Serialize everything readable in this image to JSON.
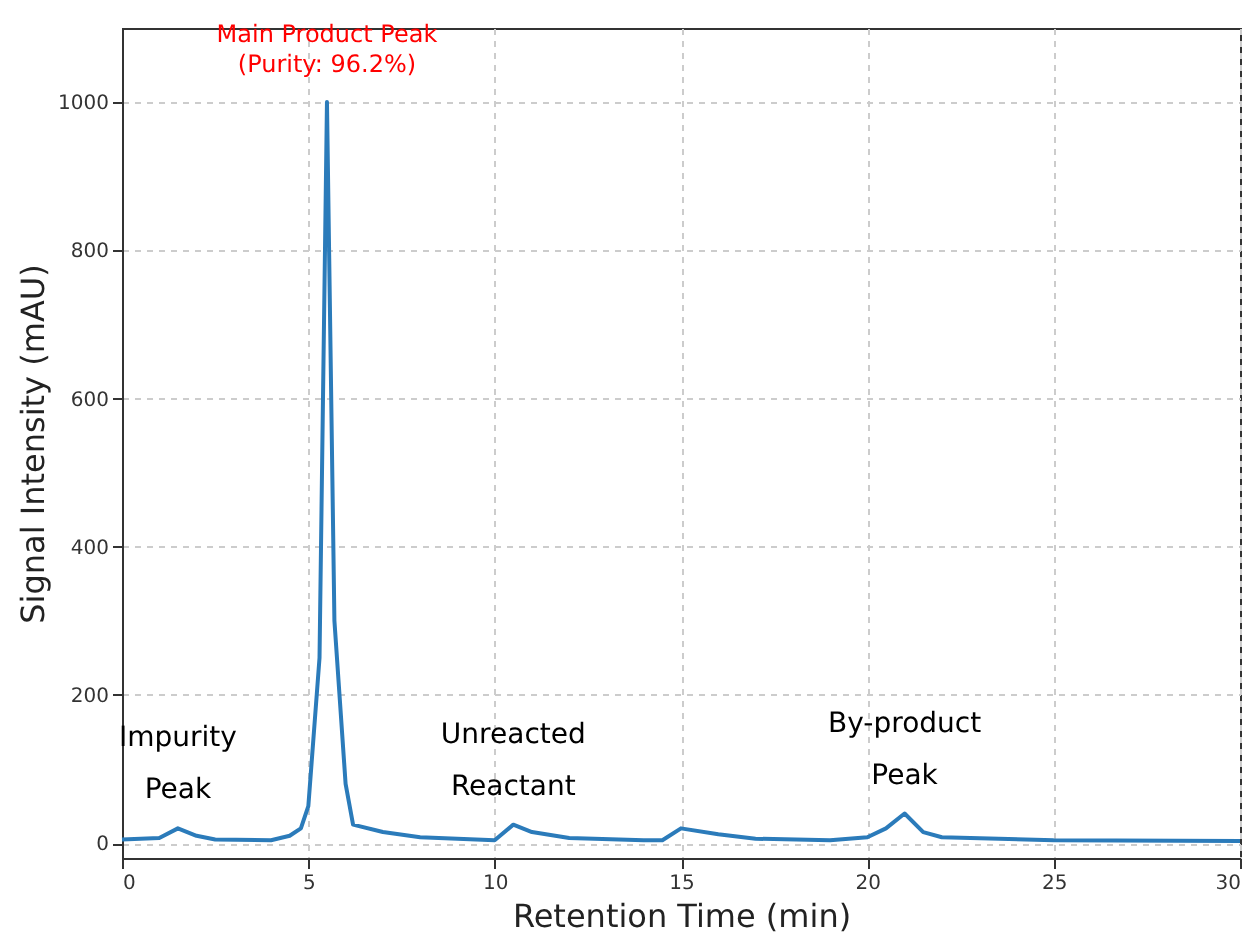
{
  "chart_data": {
    "type": "line",
    "xlabel": "Retention Time (min)",
    "ylabel": "Signal Intensity (mAU)",
    "x": [
      0,
      1,
      1.5,
      2,
      2.5,
      4,
      4.5,
      4.8,
      5,
      5.3,
      5.5,
      5.7,
      6,
      6.2,
      7,
      8,
      10,
      10.5,
      11,
      12,
      14,
      14.5,
      15,
      16,
      17,
      19,
      20,
      20.5,
      21,
      21.5,
      22,
      25,
      30
    ],
    "series": [
      {
        "color": "#2b7bba",
        "values": [
          5,
          7,
          20,
          10,
          5,
          4,
          10,
          20,
          50,
          250,
          1000,
          300,
          80,
          25,
          15,
          8,
          4,
          25,
          15,
          7,
          4,
          4,
          20,
          12,
          6,
          4,
          8,
          20,
          40,
          15,
          8,
          4,
          3
        ]
      }
    ],
    "xlim": [
      0,
      30
    ],
    "xticks": [
      0,
      5,
      10,
      15,
      20,
      25,
      30
    ],
    "ylim": [
      -20,
      1100
    ],
    "yticks": [
      0,
      200,
      400,
      600,
      800,
      1000
    ],
    "grid": true,
    "marker": "none",
    "line_style": "solid",
    "annotations": [
      {
        "text": "Main Product Peak\n(Purity: 96.2%)",
        "x": 5.5,
        "y": 1000
      },
      {
        "text": "Impurity\nPeak",
        "x": 1.5,
        "y": 20
      },
      {
        "text": "Unreacted\nReactant",
        "x": 10.5,
        "y": 25
      },
      {
        "text": "By-product\nPeak",
        "x": 21,
        "y": 40
      }
    ]
  }
}
